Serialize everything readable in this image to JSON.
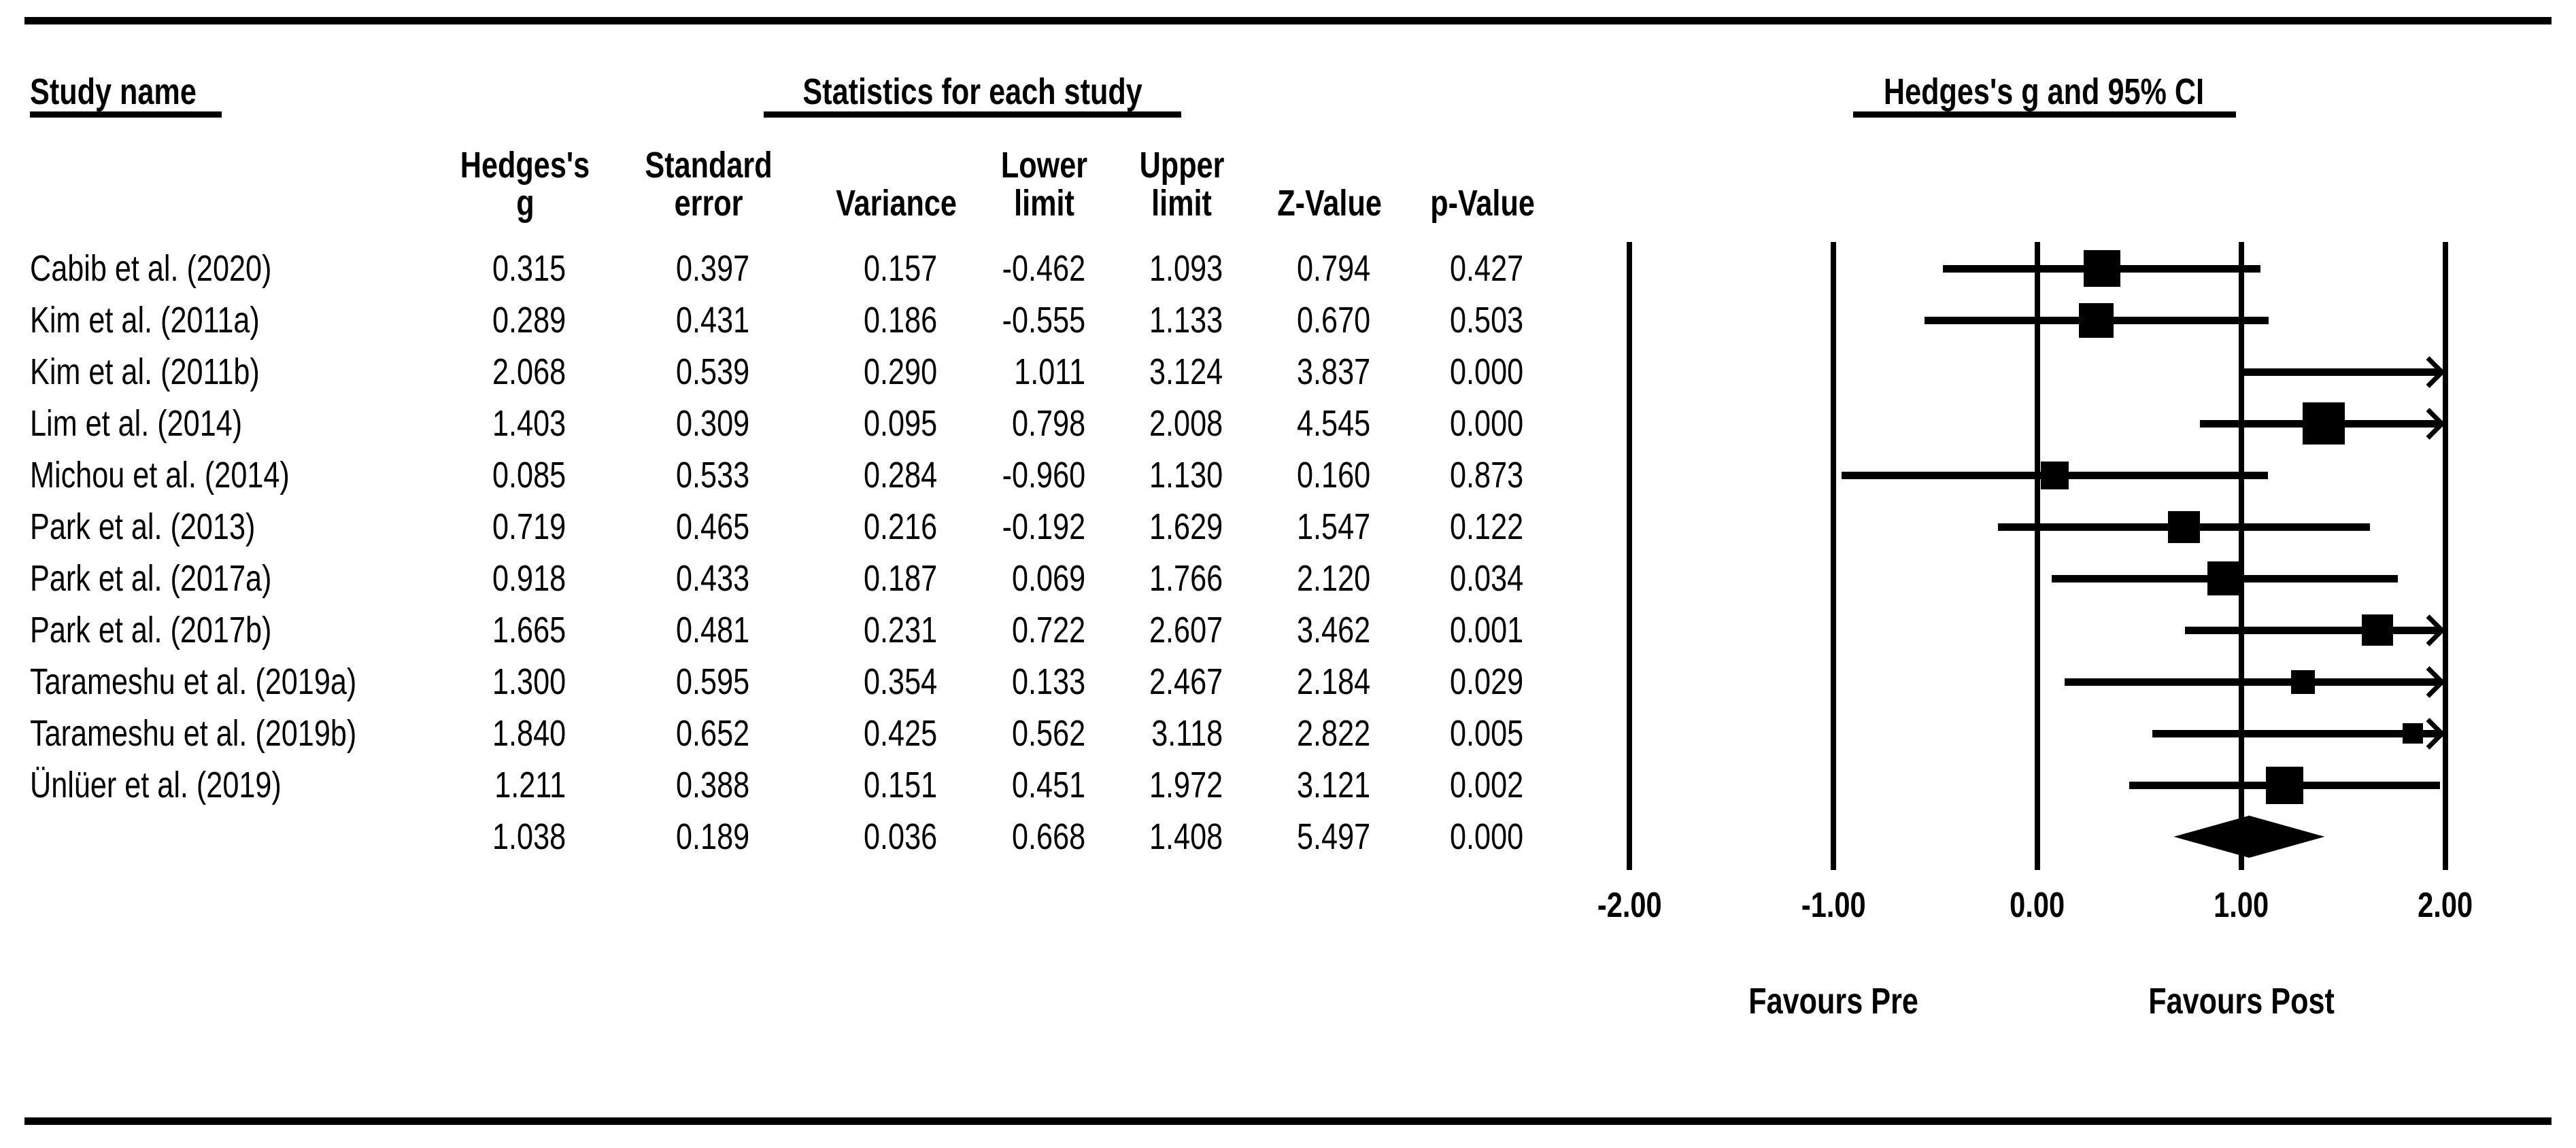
{
  "titles": {
    "study_name": "Study name",
    "stats": "Statistics for each study",
    "plot": "Hedges's g and 95% CI"
  },
  "columns": [
    {
      "line1": "Hedges's",
      "line2": "g"
    },
    {
      "line1": "Standard",
      "line2": "error"
    },
    {
      "line1": "",
      "line2": "Variance"
    },
    {
      "line1": "Lower",
      "line2": "limit"
    },
    {
      "line1": "Upper",
      "line2": "limit"
    },
    {
      "line1": "",
      "line2": "Z-Value"
    },
    {
      "line1": "",
      "line2": "p-Value"
    }
  ],
  "rows": [
    {
      "name": "Cabib et al. (2020)",
      "g": "0.315",
      "se": "0.397",
      "variance": "0.157",
      "ll": "-0.462",
      "ul": "1.093",
      "z": "0.794",
      "p": "0.427"
    },
    {
      "name": "Kim et al. (2011a)",
      "g": "0.289",
      "se": "0.431",
      "variance": "0.186",
      "ll": "-0.555",
      "ul": "1.133",
      "z": "0.670",
      "p": "0.503"
    },
    {
      "name": "Kim et al. (2011b)",
      "g": "2.068",
      "se": "0.539",
      "variance": "0.290",
      "ll": "1.011",
      "ul": "3.124",
      "z": "3.837",
      "p": "0.000"
    },
    {
      "name": "Lim et al. (2014)",
      "g": "1.403",
      "se": "0.309",
      "variance": "0.095",
      "ll": "0.798",
      "ul": "2.008",
      "z": "4.545",
      "p": "0.000"
    },
    {
      "name": "Michou et al. (2014)",
      "g": "0.085",
      "se": "0.533",
      "variance": "0.284",
      "ll": "-0.960",
      "ul": "1.130",
      "z": "0.160",
      "p": "0.873"
    },
    {
      "name": "Park et al. (2013)",
      "g": "0.719",
      "se": "0.465",
      "variance": "0.216",
      "ll": "-0.192",
      "ul": "1.629",
      "z": "1.547",
      "p": "0.122"
    },
    {
      "name": "Park et al. (2017a)",
      "g": "0.918",
      "se": "0.433",
      "variance": "0.187",
      "ll": "0.069",
      "ul": "1.766",
      "z": "2.120",
      "p": "0.034"
    },
    {
      "name": "Park et al. (2017b)",
      "g": "1.665",
      "se": "0.481",
      "variance": "0.231",
      "ll": "0.722",
      "ul": "2.607",
      "z": "3.462",
      "p": "0.001"
    },
    {
      "name": "Tarameshu et al. (2019a)",
      "g": "1.300",
      "se": "0.595",
      "variance": "0.354",
      "ll": "0.133",
      "ul": "2.467",
      "z": "2.184",
      "p": "0.029"
    },
    {
      "name": "Tarameshu et al. (2019b)",
      "g": "1.840",
      "se": "0.652",
      "variance": "0.425",
      "ll": "0.562",
      "ul": "3.118",
      "z": "2.822",
      "p": "0.005"
    },
    {
      "name": "Ünlüer et al. (2019)",
      "g": "1.211",
      "se": "0.388",
      "variance": "0.151",
      "ll": "0.451",
      "ul": "1.972",
      "z": "3.121",
      "p": "0.002"
    }
  ],
  "overall": {
    "name": "",
    "g": "1.038",
    "se": "0.189",
    "variance": "0.036",
    "ll": "0.668",
    "ul": "1.408",
    "z": "5.497",
    "p": "0.000"
  },
  "axis": {
    "ticks": [
      "-2.00",
      "-1.00",
      "0.00",
      "1.00",
      "2.00"
    ],
    "values": [
      -2,
      -1,
      0,
      1,
      2
    ]
  },
  "footer": {
    "left": "Favours Pre",
    "right": "Favours Post"
  },
  "colors": {
    "ink": "#000000",
    "background": "#ffffff"
  },
  "chart_data": {
    "type": "scatter",
    "subtype": "forest-plot",
    "title": "Hedges's g and 95% CI",
    "xlabel_left": "Favours Pre",
    "xlabel_right": "Favours Post",
    "xlim": [
      -2.0,
      2.0
    ],
    "x_ticks": [
      -2.0,
      -1.0,
      0.0,
      1.0,
      2.0
    ],
    "grid": "vertical-reference-lines",
    "legend_position": "none",
    "studies": [
      "Cabib et al. (2020)",
      "Kim et al. (2011a)",
      "Kim et al. (2011b)",
      "Lim et al. (2014)",
      "Michou et al. (2014)",
      "Park et al. (2013)",
      "Park et al. (2017a)",
      "Park et al. (2017b)",
      "Tarameshu et al. (2019a)",
      "Tarameshu et al. (2019b)",
      "Ünlüer et al. (2019)"
    ],
    "series": [
      {
        "name": "Hedges's g",
        "values": [
          0.315,
          0.289,
          2.068,
          1.403,
          0.085,
          0.719,
          0.918,
          1.665,
          1.3,
          1.84,
          1.211
        ]
      },
      {
        "name": "Standard error",
        "values": [
          0.397,
          0.431,
          0.539,
          0.309,
          0.533,
          0.465,
          0.433,
          0.481,
          0.595,
          0.652,
          0.388
        ]
      },
      {
        "name": "Variance",
        "values": [
          0.157,
          0.186,
          0.29,
          0.095,
          0.284,
          0.216,
          0.187,
          0.231,
          0.354,
          0.425,
          0.151
        ]
      },
      {
        "name": "Lower limit",
        "values": [
          -0.462,
          -0.555,
          1.011,
          0.798,
          -0.96,
          -0.192,
          0.069,
          0.722,
          0.133,
          0.562,
          0.451
        ]
      },
      {
        "name": "Upper limit",
        "values": [
          1.093,
          1.133,
          3.124,
          2.008,
          1.13,
          1.629,
          1.766,
          2.607,
          2.467,
          3.118,
          1.972
        ]
      },
      {
        "name": "Z-Value",
        "values": [
          0.794,
          0.67,
          3.837,
          4.545,
          0.16,
          1.547,
          2.12,
          3.462,
          2.184,
          2.822,
          3.121
        ]
      },
      {
        "name": "p-Value",
        "values": [
          0.427,
          0.503,
          0.0,
          0.0,
          0.873,
          0.122,
          0.034,
          0.001,
          0.029,
          0.005,
          0.002
        ]
      }
    ],
    "overall": {
      "g": 1.038,
      "se": 0.189,
      "variance": 0.036,
      "ll": 0.668,
      "ul": 1.408,
      "z": 5.497,
      "p": 0.0,
      "marker": "diamond"
    }
  }
}
